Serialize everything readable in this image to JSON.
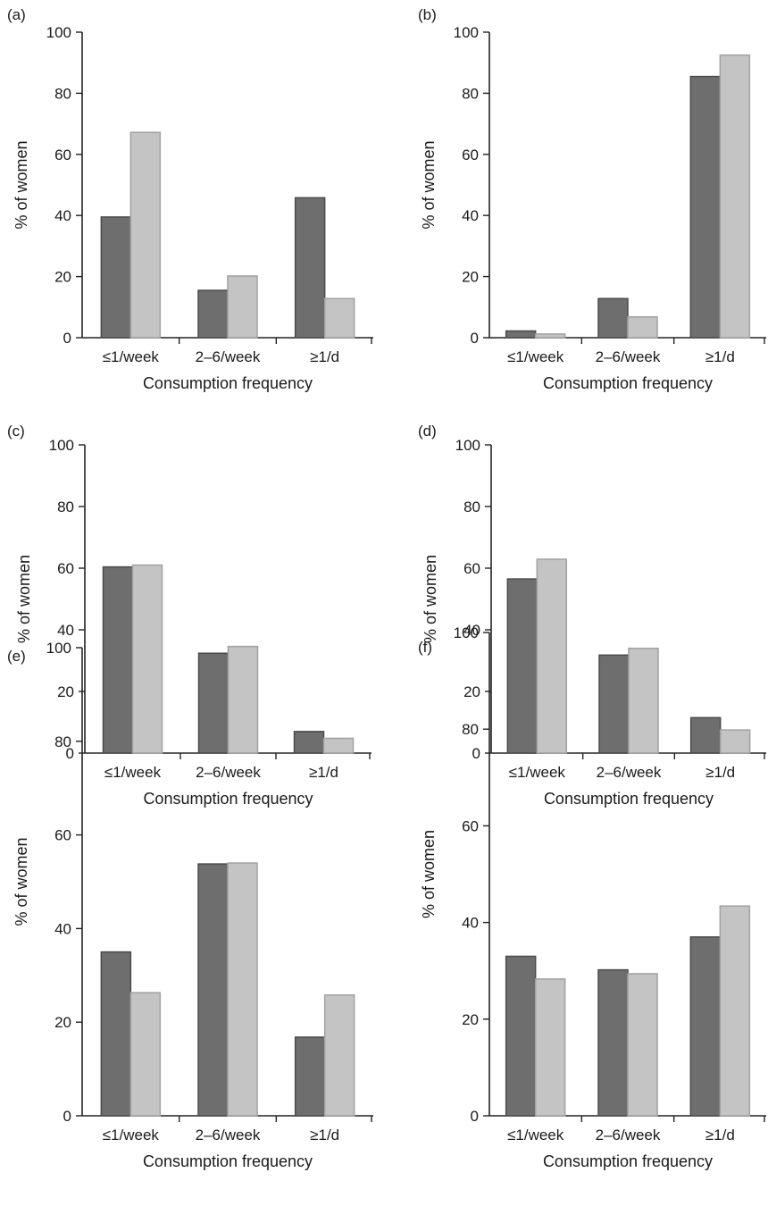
{
  "chart_data": [
    {
      "panel": "(a)",
      "type": "bar",
      "categories": [
        "≤1/week",
        "2–6/week",
        "≥1/d"
      ],
      "series": [
        {
          "values": [
            39.5,
            15.5,
            45.8
          ],
          "color": "#6e6e6e"
        },
        {
          "values": [
            67.2,
            20.2,
            12.8
          ],
          "color": "#c4c4c4"
        }
      ],
      "xlabel": "Consumption frequency",
      "ylabel": "% of women",
      "ylim": [
        0,
        100
      ],
      "yticks": [
        0,
        20,
        40,
        60,
        80,
        100
      ],
      "grid": false
    },
    {
      "panel": "(b)",
      "type": "bar",
      "categories": [
        "≤1/week",
        "2–6/week",
        "≥1/d"
      ],
      "series": [
        {
          "values": [
            2.2,
            12.8,
            85.5
          ],
          "color": "#6e6e6e"
        },
        {
          "values": [
            1.2,
            6.8,
            92.5
          ],
          "color": "#c4c4c4"
        }
      ],
      "xlabel": "Consumption frequency",
      "ylabel": "% of women",
      "ylim": [
        0,
        100
      ],
      "yticks": [
        0,
        20,
        40,
        60,
        80,
        100
      ],
      "grid": false
    },
    {
      "panel": "(c)",
      "type": "bar",
      "categories": [
        "≤1/week",
        "2–6/week",
        "≥1/d"
      ],
      "series": [
        {
          "values": [
            60.4,
            32.4,
            7.0
          ],
          "color": "#6e6e6e"
        },
        {
          "values": [
            61.0,
            34.6,
            4.8
          ],
          "color": "#c4c4c4"
        }
      ],
      "xlabel": "Consumption frequency",
      "ylabel": "% of women",
      "ylim": [
        0,
        100
      ],
      "yticks": [
        0,
        20,
        40,
        60,
        80,
        100
      ],
      "grid": false
    },
    {
      "panel": "(d)",
      "type": "bar",
      "categories": [
        "≤1/week",
        "2–6/week",
        "≥1/d"
      ],
      "series": [
        {
          "values": [
            56.5,
            31.8,
            11.5
          ],
          "color": "#6e6e6e"
        },
        {
          "values": [
            62.9,
            34.0,
            7.5
          ],
          "color": "#c4c4c4"
        }
      ],
      "xlabel": "Consumption frequency",
      "ylabel": "% of women",
      "ylim": [
        0,
        100
      ],
      "yticks": [
        0,
        20,
        40,
        60,
        80,
        100
      ],
      "grid": false
    },
    {
      "panel": "(e)",
      "type": "bar",
      "categories": [
        "≤1/week",
        "2–6/week",
        "≥1/d"
      ],
      "series": [
        {
          "values": [
            35.0,
            53.8,
            16.8
          ],
          "color": "#6e6e6e"
        },
        {
          "values": [
            26.3,
            54.0,
            25.8
          ],
          "color": "#c4c4c4"
        }
      ],
      "xlabel": "Consumption frequency",
      "ylabel": "% of women",
      "ylim": [
        0,
        100
      ],
      "yticks": [
        0,
        20,
        40,
        60,
        80,
        100
      ],
      "grid": false
    },
    {
      "panel": "(f)",
      "type": "bar",
      "categories": [
        "≤1/week",
        "2–6/week",
        "≥1/d"
      ],
      "series": [
        {
          "values": [
            33.0,
            30.2,
            37.0
          ],
          "color": "#6e6e6e"
        },
        {
          "values": [
            28.3,
            29.4,
            43.4
          ],
          "color": "#c4c4c4"
        }
      ],
      "xlabel": "Consumption frequency",
      "ylabel": "% of women",
      "ylim": [
        0,
        100
      ],
      "yticks": [
        0,
        20,
        40,
        60,
        80,
        100
      ],
      "grid": false
    }
  ]
}
